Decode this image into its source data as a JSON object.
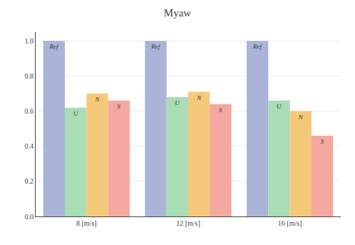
{
  "chart_data": {
    "type": "bar",
    "title": "Myaw",
    "categories": [
      "8 [m/s]",
      "12 [m/s]",
      "16 [m/s]"
    ],
    "series": [
      {
        "name": "Ref",
        "color": "#aab4d8",
        "values": [
          1.0,
          1.0,
          1.0
        ]
      },
      {
        "name": "U",
        "color": "#a8ddb5",
        "values": [
          0.62,
          0.68,
          0.66
        ]
      },
      {
        "name": "N",
        "color": "#f5c97a",
        "values": [
          0.7,
          0.71,
          0.6
        ]
      },
      {
        "name": "S",
        "color": "#f4a8a0",
        "values": [
          0.66,
          0.64,
          0.46
        ]
      }
    ],
    "ylim": [
      0.0,
      1.05
    ],
    "yticks": [
      {
        "value": 0.0,
        "label": "0.0"
      },
      0.2,
      0.4,
      0.6,
      0.8,
      {
        "value": 1.0,
        "label": "1.0"
      }
    ],
    "grid": true
  }
}
